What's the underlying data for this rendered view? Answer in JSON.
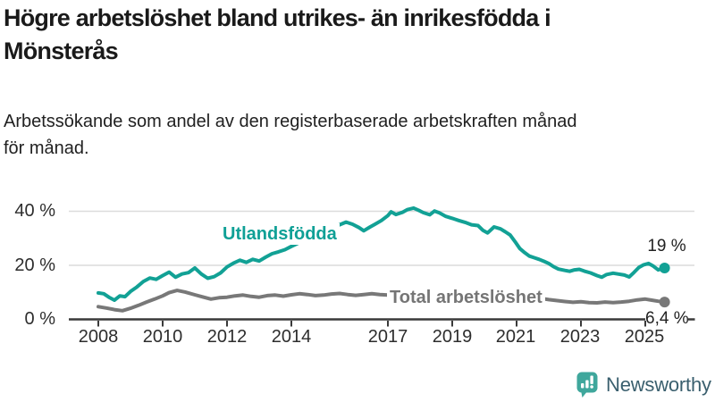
{
  "header": {
    "title_lines": [
      "Högre arbetslöshet bland utrikes- än inrikesfödda i",
      "Mönsterås"
    ],
    "subtitle_lines": [
      "Arbetssökande som andel av den registerbaserade arbetskraften månad",
      "för månad."
    ]
  },
  "chart_data": {
    "type": "line",
    "title": "Högre arbetslöshet bland utrikes- än inrikesfödda i Mönsterås",
    "subtitle": "Arbetssökande som andel av den registerbaserade arbetskraften månad för månad.",
    "unit": "%",
    "grid": "horizontal-only",
    "x_range": [
      2008,
      2025.6
    ],
    "ylim": [
      0,
      44
    ],
    "y_axis": {
      "ticks": [
        {
          "v": 0,
          "label": "0 %"
        },
        {
          "v": 20,
          "label": "20 %"
        },
        {
          "v": 40,
          "label": "40 %"
        }
      ],
      "gridline_values": [
        20,
        40
      ]
    },
    "x_axis": {
      "ticks": [
        {
          "year": 2008,
          "label": "2008"
        },
        {
          "year": 2010,
          "label": "2010"
        },
        {
          "year": 2012,
          "label": "2012"
        },
        {
          "year": 2014,
          "label": "2014"
        },
        {
          "year": 2017,
          "label": "2017"
        },
        {
          "year": 2019,
          "label": "2019"
        },
        {
          "year": 2021,
          "label": "2021"
        },
        {
          "year": 2023,
          "label": "2023"
        },
        {
          "year": 2025,
          "label": "2025"
        }
      ]
    },
    "series": [
      {
        "name": "Utlandsfödda",
        "color": "#12a195",
        "end_label": "19 %",
        "end_value": 19,
        "points": [
          [
            2008.0,
            9.8
          ],
          [
            2008.17,
            9.5
          ],
          [
            2008.33,
            8.2
          ],
          [
            2008.5,
            7.1
          ],
          [
            2008.67,
            8.7
          ],
          [
            2008.83,
            8.4
          ],
          [
            2009.0,
            10.3
          ],
          [
            2009.2,
            12.0
          ],
          [
            2009.4,
            14.0
          ],
          [
            2009.6,
            15.3
          ],
          [
            2009.8,
            14.8
          ],
          [
            2010.0,
            16.2
          ],
          [
            2010.2,
            17.5
          ],
          [
            2010.4,
            15.6
          ],
          [
            2010.6,
            16.8
          ],
          [
            2010.8,
            17.3
          ],
          [
            2011.0,
            19.0
          ],
          [
            2011.2,
            16.8
          ],
          [
            2011.4,
            15.2
          ],
          [
            2011.6,
            15.8
          ],
          [
            2011.8,
            17.2
          ],
          [
            2012.0,
            19.4
          ],
          [
            2012.2,
            20.8
          ],
          [
            2012.4,
            21.9
          ],
          [
            2012.6,
            21.1
          ],
          [
            2012.8,
            22.2
          ],
          [
            2013.0,
            21.6
          ],
          [
            2013.2,
            23.0
          ],
          [
            2013.4,
            24.3
          ],
          [
            2013.6,
            25.0
          ],
          [
            2013.8,
            25.8
          ],
          [
            2014.0,
            27.0
          ],
          [
            2014.25,
            28.4
          ],
          [
            2014.5,
            29.8
          ],
          [
            2014.75,
            31.2
          ],
          [
            2015.0,
            32.4
          ],
          [
            2015.25,
            33.6
          ],
          [
            2015.5,
            35.0
          ],
          [
            2015.7,
            36.0
          ],
          [
            2015.9,
            35.2
          ],
          [
            2016.1,
            34.0
          ],
          [
            2016.25,
            32.8
          ],
          [
            2016.45,
            34.2
          ],
          [
            2016.6,
            35.2
          ],
          [
            2016.8,
            36.6
          ],
          [
            2017.0,
            38.4
          ],
          [
            2017.1,
            39.8
          ],
          [
            2017.25,
            38.8
          ],
          [
            2017.45,
            39.6
          ],
          [
            2017.6,
            40.6
          ],
          [
            2017.8,
            41.2
          ],
          [
            2017.95,
            40.4
          ],
          [
            2018.1,
            39.5
          ],
          [
            2018.3,
            38.7
          ],
          [
            2018.45,
            40.1
          ],
          [
            2018.6,
            39.4
          ],
          [
            2018.8,
            38.1
          ],
          [
            2019.0,
            37.4
          ],
          [
            2019.2,
            36.6
          ],
          [
            2019.4,
            35.9
          ],
          [
            2019.6,
            35.0
          ],
          [
            2019.8,
            34.7
          ],
          [
            2019.95,
            33.0
          ],
          [
            2020.1,
            32.0
          ],
          [
            2020.3,
            34.2
          ],
          [
            2020.5,
            33.5
          ],
          [
            2020.65,
            32.4
          ],
          [
            2020.8,
            31.2
          ],
          [
            2020.95,
            28.8
          ],
          [
            2021.1,
            26.2
          ],
          [
            2021.25,
            24.7
          ],
          [
            2021.4,
            23.4
          ],
          [
            2021.55,
            22.8
          ],
          [
            2021.7,
            22.2
          ],
          [
            2021.85,
            21.5
          ],
          [
            2022.0,
            20.7
          ],
          [
            2022.15,
            19.5
          ],
          [
            2022.3,
            18.6
          ],
          [
            2022.5,
            18.1
          ],
          [
            2022.65,
            17.8
          ],
          [
            2022.8,
            18.3
          ],
          [
            2022.95,
            18.5
          ],
          [
            2023.1,
            17.9
          ],
          [
            2023.3,
            17.2
          ],
          [
            2023.5,
            16.2
          ],
          [
            2023.65,
            15.6
          ],
          [
            2023.8,
            16.6
          ],
          [
            2024.0,
            17.1
          ],
          [
            2024.15,
            16.8
          ],
          [
            2024.35,
            16.4
          ],
          [
            2024.5,
            15.7
          ],
          [
            2024.65,
            17.4
          ],
          [
            2024.8,
            19.2
          ],
          [
            2024.95,
            20.2
          ],
          [
            2025.1,
            20.7
          ],
          [
            2025.25,
            19.7
          ],
          [
            2025.4,
            18.3
          ],
          [
            2025.6,
            19.0
          ]
        ]
      },
      {
        "name": "Total arbetslöshet",
        "color": "#787878",
        "end_label": "6,4 %",
        "end_value": 6.4,
        "points": [
          [
            2008.0,
            4.7
          ],
          [
            2008.25,
            4.2
          ],
          [
            2008.5,
            3.6
          ],
          [
            2008.75,
            3.2
          ],
          [
            2009.0,
            4.1
          ],
          [
            2009.25,
            5.2
          ],
          [
            2009.5,
            6.4
          ],
          [
            2009.75,
            7.5
          ],
          [
            2010.0,
            8.7
          ],
          [
            2010.2,
            9.9
          ],
          [
            2010.45,
            10.7
          ],
          [
            2010.7,
            10.1
          ],
          [
            2011.0,
            9.1
          ],
          [
            2011.25,
            8.3
          ],
          [
            2011.5,
            7.5
          ],
          [
            2011.75,
            8.0
          ],
          [
            2012.0,
            8.2
          ],
          [
            2012.25,
            8.7
          ],
          [
            2012.5,
            9.0
          ],
          [
            2012.75,
            8.5
          ],
          [
            2013.0,
            8.2
          ],
          [
            2013.25,
            8.8
          ],
          [
            2013.5,
            9.0
          ],
          [
            2013.75,
            8.6
          ],
          [
            2014.0,
            9.1
          ],
          [
            2014.25,
            9.5
          ],
          [
            2014.5,
            9.2
          ],
          [
            2014.75,
            8.8
          ],
          [
            2015.0,
            9.0
          ],
          [
            2015.25,
            9.4
          ],
          [
            2015.5,
            9.6
          ],
          [
            2015.75,
            9.2
          ],
          [
            2016.0,
            8.9
          ],
          [
            2016.25,
            9.2
          ],
          [
            2016.5,
            9.5
          ],
          [
            2016.75,
            9.2
          ],
          [
            2017.0,
            9.0
          ],
          [
            2017.5,
            9.1
          ],
          [
            2018.0,
            8.7
          ],
          [
            2018.5,
            8.4
          ],
          [
            2019.0,
            8.2
          ],
          [
            2019.5,
            8.4
          ],
          [
            2020.0,
            8.7
          ],
          [
            2020.5,
            9.5
          ],
          [
            2021.0,
            9.0
          ],
          [
            2021.5,
            8.2
          ],
          [
            2022.0,
            7.3
          ],
          [
            2022.5,
            6.6
          ],
          [
            2022.75,
            6.3
          ],
          [
            2023.0,
            6.5
          ],
          [
            2023.25,
            6.2
          ],
          [
            2023.5,
            6.1
          ],
          [
            2023.75,
            6.4
          ],
          [
            2024.0,
            6.2
          ],
          [
            2024.25,
            6.4
          ],
          [
            2024.5,
            6.7
          ],
          [
            2024.75,
            7.2
          ],
          [
            2025.0,
            7.5
          ],
          [
            2025.2,
            7.1
          ],
          [
            2025.4,
            6.7
          ],
          [
            2025.6,
            6.4
          ]
        ]
      }
    ],
    "legend_position": "inline-labels"
  },
  "colors": {
    "background": "#ffffff",
    "accent_teal": "#12a195",
    "series_gray": "#787878",
    "gridline": "#dcdcdc",
    "axis": "#3a3a3a",
    "logo_icon": "#3fa79c",
    "logo_text": "#3a5f6e"
  },
  "branding": {
    "name": "Newsworthy"
  }
}
